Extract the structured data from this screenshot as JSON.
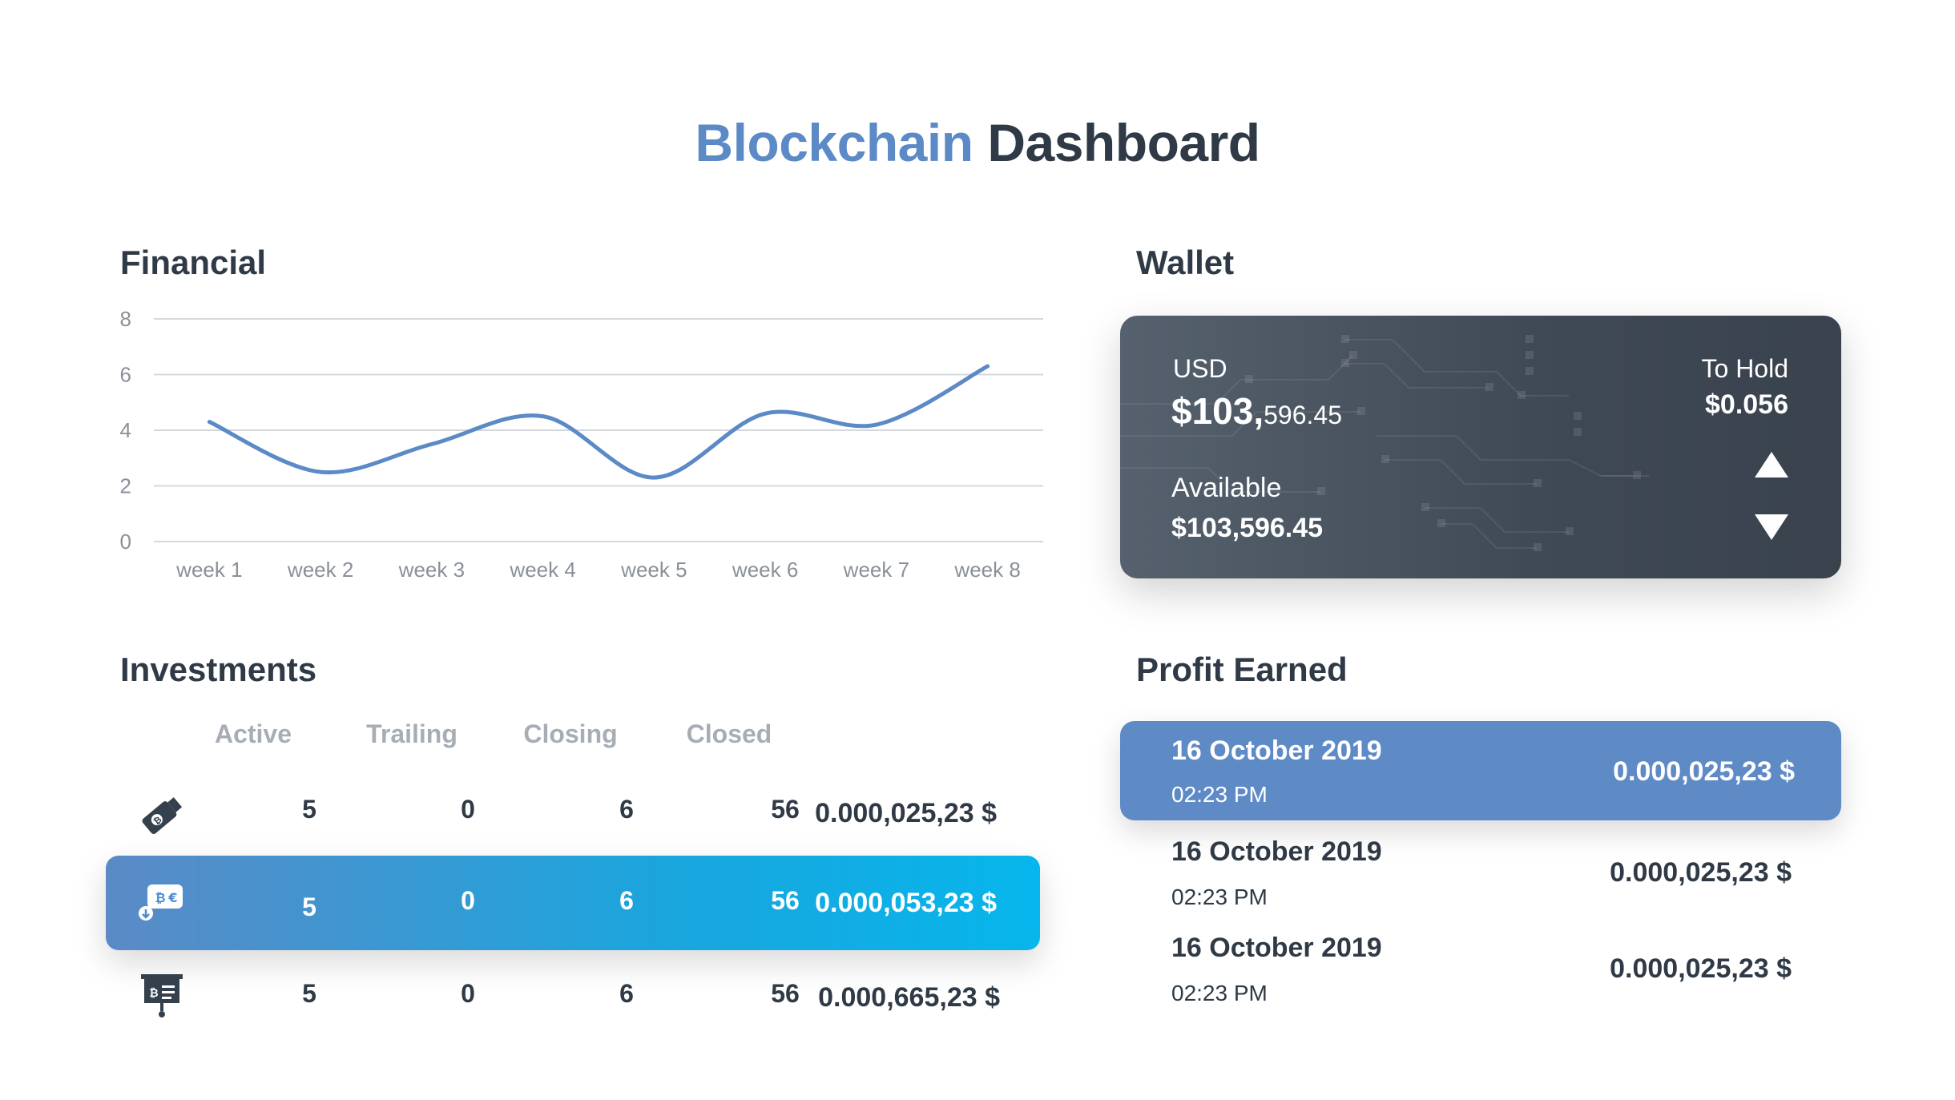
{
  "header": {
    "title_part1": "Blockchain",
    "title_part2": "Dashboard"
  },
  "financial": {
    "title": "Financial",
    "chart_data": {
      "type": "line",
      "title": "",
      "categories": [
        "week 1",
        "week 2",
        "week 3",
        "week 4",
        "week 5",
        "week 6",
        "week 7",
        "week 8"
      ],
      "series": [
        {
          "values": [
            4.3,
            2.5,
            3.5,
            4.5,
            2.3,
            4.6,
            4.2,
            6.3
          ]
        }
      ],
      "yticks": [
        "0",
        "2",
        "4",
        "6",
        "8"
      ],
      "ylim": [
        0,
        8
      ],
      "grid": true,
      "color": "#5b8ac6"
    }
  },
  "wallet": {
    "title": "Wallet",
    "currency_label": "USD",
    "amount_main": "$103,",
    "amount_cents": "596.45",
    "available_label": "Available",
    "available_value": "$103,596.45",
    "hold_label": "To Hold",
    "hold_value": "$0.056"
  },
  "investments": {
    "title": "Investments",
    "columns": [
      "Active",
      "Trailing",
      "Closing",
      "Closed"
    ],
    "rows": [
      {
        "icon": "usb-coin-icon",
        "active": "5",
        "trailing": "0",
        "closing": "6",
        "closed": "56",
        "total": "0.000,025,23 $"
      },
      {
        "icon": "bitcoin-transfer-icon",
        "active": "5",
        "trailing": "0",
        "closing": "6",
        "closed": "56",
        "total": "0.000,053,23 $"
      },
      {
        "icon": "bitcoin-presentation-icon",
        "active": "5",
        "trailing": "0",
        "closing": "6",
        "closed": "56",
        "total": "0.000,665,23 $"
      }
    ]
  },
  "profit": {
    "title": "Profit Earned",
    "rows": [
      {
        "date": "16 October 2019",
        "time": "02:23 PM",
        "amount": "0.000,025,23 $"
      },
      {
        "date": "16 October 2019",
        "time": "02:23 PM",
        "amount": "0.000,025,23 $"
      },
      {
        "date": "16 October 2019",
        "time": "02:23 PM",
        "amount": "0.000,025,23 $"
      }
    ]
  },
  "colors": {
    "accent": "#5b8ac6",
    "dark": "#2f3a46",
    "muted": "#a7adb5",
    "highlight_end": "#06b6ec"
  }
}
